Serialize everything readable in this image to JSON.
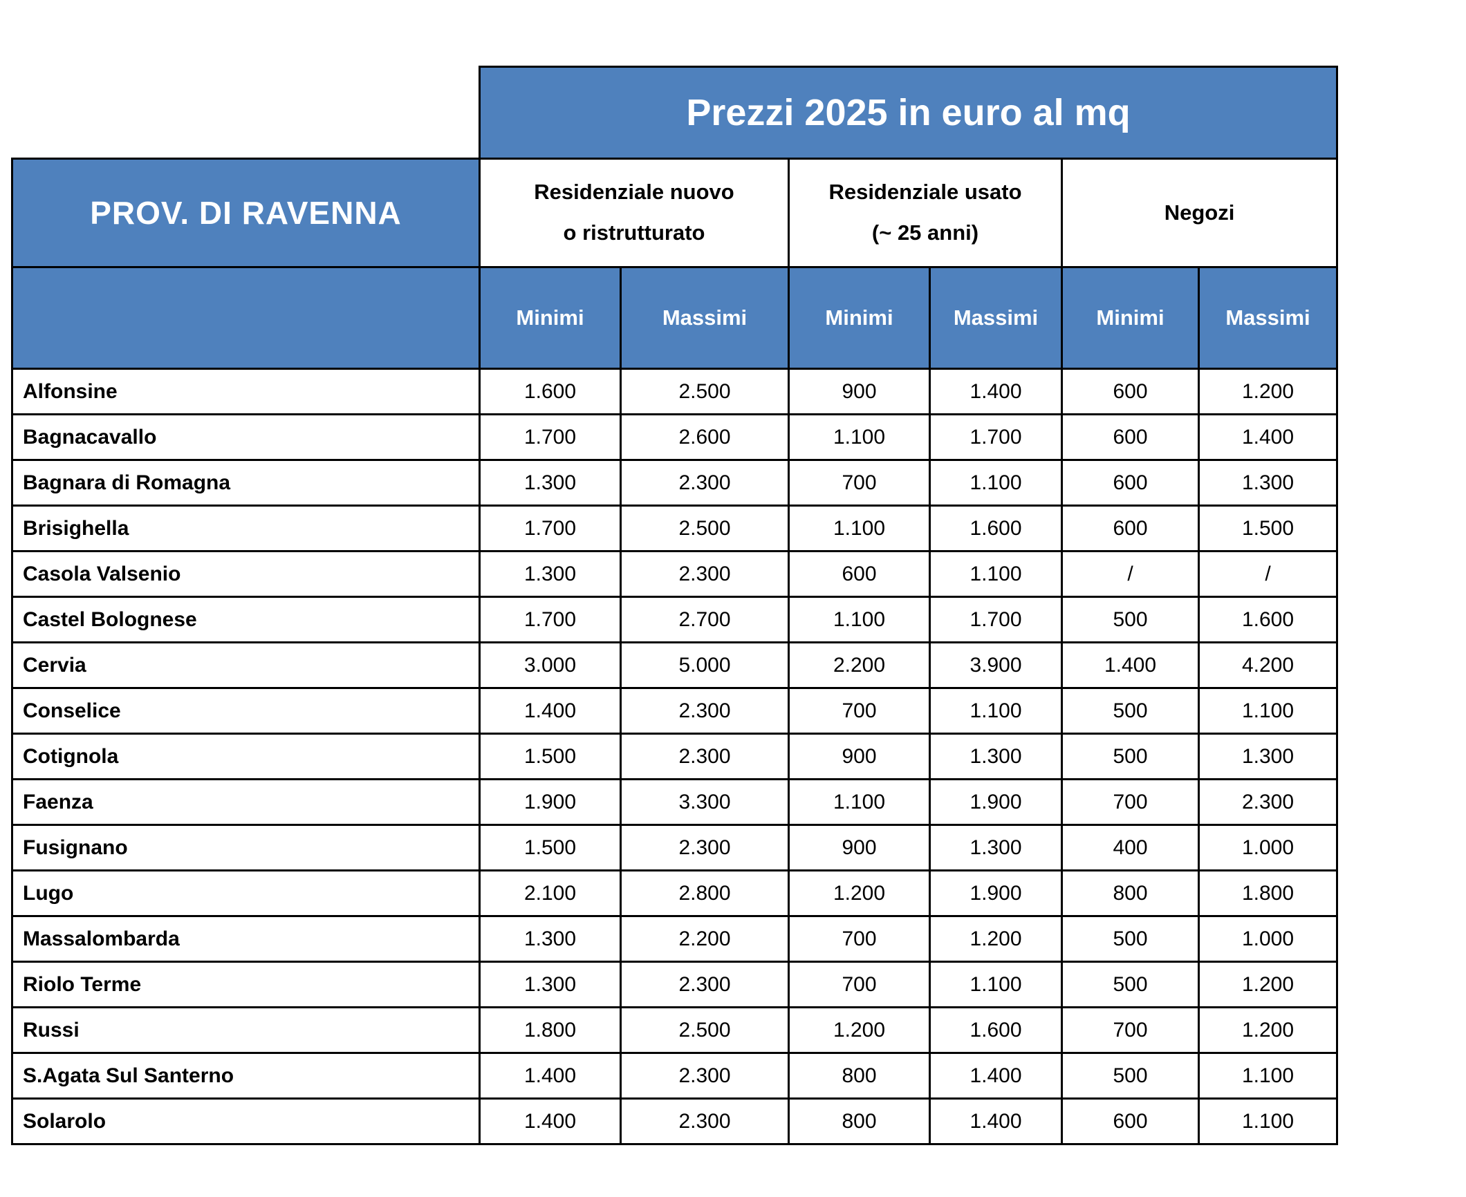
{
  "table": {
    "title": "Prezzi 2025 in euro al mq",
    "corner_title": "PROV. DI RAVENNA",
    "groups": [
      {
        "label": "Residenziale nuovo\no ristrutturato"
      },
      {
        "label": "Residenziale usato\n(~ 25 anni)"
      },
      {
        "label": "Negozi"
      }
    ],
    "subheaders": [
      "Minimi",
      "Massimi",
      "Minimi",
      "Massimi",
      "Minimi",
      "Massimi"
    ],
    "rows": [
      {
        "name": "Alfonsine",
        "values": [
          "1.600",
          "2.500",
          "900",
          "1.400",
          "600",
          "1.200"
        ]
      },
      {
        "name": "Bagnacavallo",
        "values": [
          "1.700",
          "2.600",
          "1.100",
          "1.700",
          "600",
          "1.400"
        ]
      },
      {
        "name": "Bagnara di Romagna",
        "values": [
          "1.300",
          "2.300",
          "700",
          "1.100",
          "600",
          "1.300"
        ]
      },
      {
        "name": "Brisighella",
        "values": [
          "1.700",
          "2.500",
          "1.100",
          "1.600",
          "600",
          "1.500"
        ]
      },
      {
        "name": "Casola Valsenio",
        "values": [
          "1.300",
          "2.300",
          "600",
          "1.100",
          "/",
          "/"
        ]
      },
      {
        "name": "Castel Bolognese",
        "values": [
          "1.700",
          "2.700",
          "1.100",
          "1.700",
          "500",
          "1.600"
        ]
      },
      {
        "name": "Cervia",
        "values": [
          "3.000",
          "5.000",
          "2.200",
          "3.900",
          "1.400",
          "4.200"
        ]
      },
      {
        "name": "Conselice",
        "values": [
          "1.400",
          "2.300",
          "700",
          "1.100",
          "500",
          "1.100"
        ]
      },
      {
        "name": "Cotignola",
        "values": [
          "1.500",
          "2.300",
          "900",
          "1.300",
          "500",
          "1.300"
        ]
      },
      {
        "name": "Faenza",
        "values": [
          "1.900",
          "3.300",
          "1.100",
          "1.900",
          "700",
          "2.300"
        ]
      },
      {
        "name": "Fusignano",
        "values": [
          "1.500",
          "2.300",
          "900",
          "1.300",
          "400",
          "1.000"
        ]
      },
      {
        "name": "Lugo",
        "values": [
          "2.100",
          "2.800",
          "1.200",
          "1.900",
          "800",
          "1.800"
        ]
      },
      {
        "name": "Massalombarda",
        "values": [
          "1.300",
          "2.200",
          "700",
          "1.200",
          "500",
          "1.000"
        ]
      },
      {
        "name": "Riolo Terme",
        "values": [
          "1.300",
          "2.300",
          "700",
          "1.100",
          "500",
          "1.200"
        ]
      },
      {
        "name": "Russi",
        "values": [
          "1.800",
          "2.500",
          "1.200",
          "1.600",
          "700",
          "1.200"
        ]
      },
      {
        "name": "S.Agata Sul Santerno",
        "values": [
          "1.400",
          "2.300",
          "800",
          "1.400",
          "500",
          "1.100"
        ]
      },
      {
        "name": "Solarolo",
        "values": [
          "1.400",
          "2.300",
          "800",
          "1.400",
          "600",
          "1.100"
        ]
      }
    ],
    "colors": {
      "header_blue": "#4f81bd",
      "border_black": "#000000",
      "header_text": "#ffffff",
      "body_text": "#000000"
    }
  }
}
